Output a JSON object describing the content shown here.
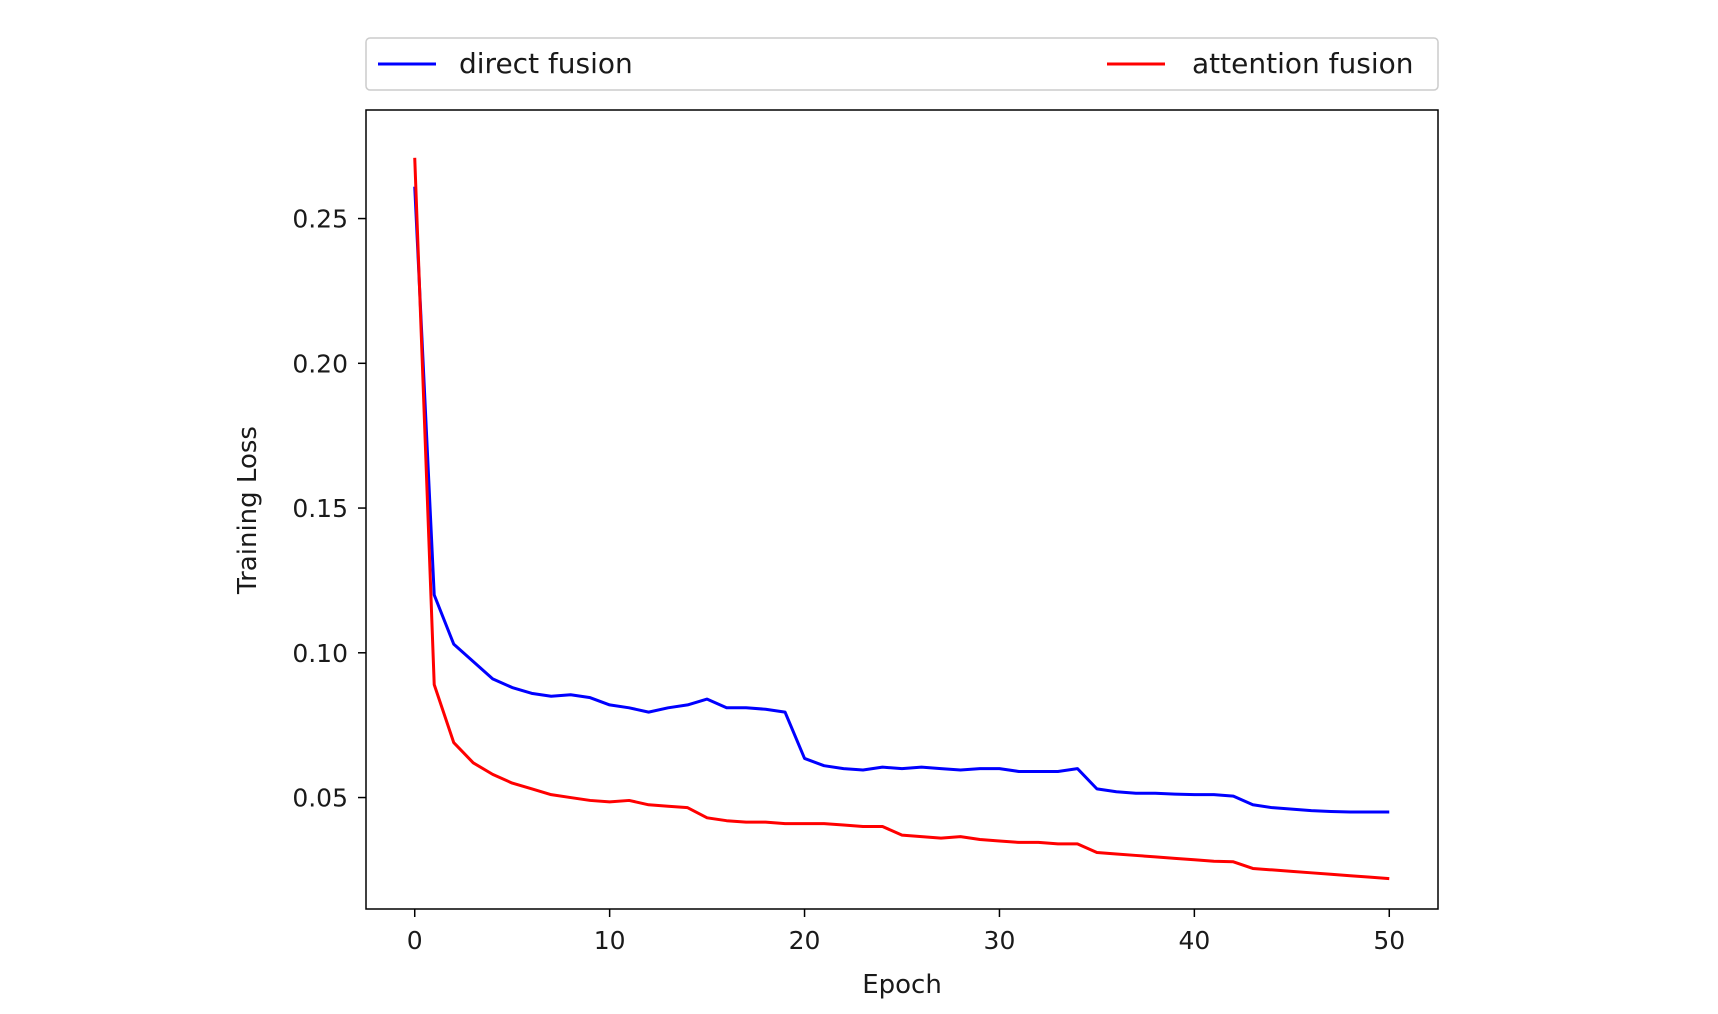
{
  "chart_data": {
    "type": "line",
    "title": "",
    "xlabel": "Epoch",
    "ylabel": "Training Loss",
    "xlim": [
      -2.5,
      52.5
    ],
    "ylim": [
      0.0115,
      0.2875
    ],
    "xticks": [
      0,
      10,
      20,
      30,
      40,
      50
    ],
    "yticks": [
      0.05,
      0.1,
      0.15,
      0.2,
      0.25
    ],
    "xtick_labels": [
      "0",
      "10",
      "20",
      "30",
      "40",
      "50"
    ],
    "ytick_labels": [
      "0.05",
      "0.10",
      "0.15",
      "0.20",
      "0.25"
    ],
    "grid": false,
    "legend_position": "top (above plot, spanning width)",
    "x": [
      0,
      1,
      2,
      3,
      4,
      5,
      6,
      7,
      8,
      9,
      10,
      11,
      12,
      13,
      14,
      15,
      16,
      17,
      18,
      19,
      20,
      21,
      22,
      23,
      24,
      25,
      26,
      27,
      28,
      29,
      30,
      31,
      32,
      33,
      34,
      35,
      36,
      37,
      38,
      39,
      40,
      41,
      42,
      43,
      44,
      45,
      46,
      47,
      48,
      49,
      50
    ],
    "series": [
      {
        "name": "direct fusion",
        "color": "#0000ff",
        "values": [
          0.261,
          0.12,
          0.103,
          0.097,
          0.091,
          0.088,
          0.086,
          0.085,
          0.0855,
          0.0845,
          0.082,
          0.081,
          0.0795,
          0.081,
          0.082,
          0.084,
          0.081,
          0.081,
          0.0805,
          0.0795,
          0.0635,
          0.061,
          0.06,
          0.0595,
          0.0605,
          0.06,
          0.0605,
          0.06,
          0.0595,
          0.06,
          0.06,
          0.059,
          0.059,
          0.059,
          0.06,
          0.053,
          0.052,
          0.0515,
          0.0515,
          0.0512,
          0.051,
          0.051,
          0.0505,
          0.0475,
          0.0465,
          0.046,
          0.0455,
          0.0452,
          0.045,
          0.045,
          0.045
        ]
      },
      {
        "name": "attention fusion",
        "color": "#ff0000",
        "values": [
          0.271,
          0.089,
          0.069,
          0.062,
          0.058,
          0.055,
          0.053,
          0.051,
          0.05,
          0.049,
          0.0485,
          0.049,
          0.0475,
          0.047,
          0.0465,
          0.043,
          0.042,
          0.0415,
          0.0415,
          0.041,
          0.041,
          0.041,
          0.0405,
          0.04,
          0.04,
          0.037,
          0.0365,
          0.036,
          0.0365,
          0.0355,
          0.035,
          0.0345,
          0.0345,
          0.034,
          0.034,
          0.031,
          0.0305,
          0.03,
          0.0295,
          0.029,
          0.0285,
          0.028,
          0.0278,
          0.0255,
          0.025,
          0.0245,
          0.024,
          0.0235,
          0.023,
          0.0225,
          0.022
        ]
      }
    ]
  }
}
